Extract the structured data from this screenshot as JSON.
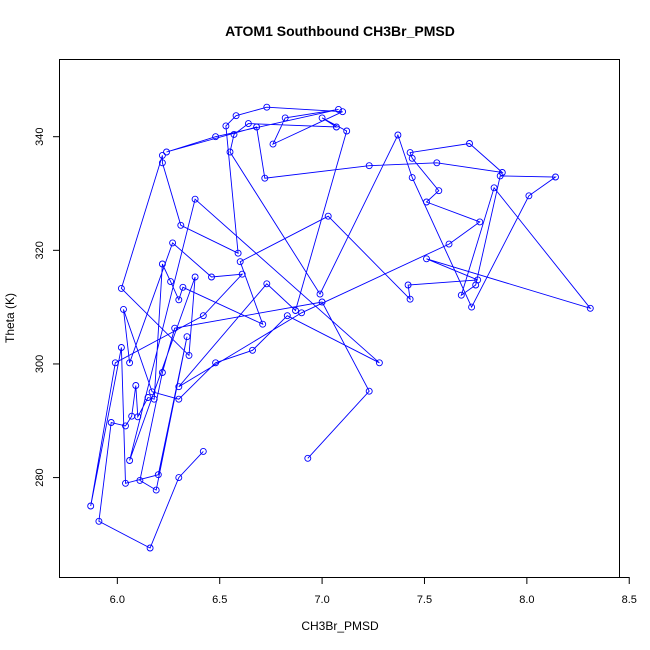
{
  "chart_data": {
    "type": "line",
    "title": "ATOM1 Southbound CH3Br_PMSD",
    "xlabel": "CH3Br_PMSD",
    "ylabel": "Theta (K)",
    "xlim": [
      5.72,
      8.45
    ],
    "ylim": [
      262.5,
      353.5
    ],
    "x_ticks": [
      6.0,
      6.5,
      7.0,
      7.5,
      8.0,
      8.5
    ],
    "x_tick_labels": [
      "6.0",
      "6.5",
      "7.0",
      "7.5",
      "8.0",
      "8.5"
    ],
    "y_ticks": [
      280,
      300,
      320,
      340
    ],
    "y_tick_labels": [
      "280",
      "300",
      "320",
      "340"
    ],
    "grid": false,
    "legend": "none",
    "line_color": "#0000ff",
    "marker": "open-circle",
    "series": [
      {
        "x": [
          6.93,
          7.23,
          7.0,
          6.28,
          6.22,
          6.11,
          6.19,
          6.34,
          6.2,
          6.04,
          6.02,
          5.87,
          5.99,
          6.42,
          6.61,
          6.46,
          6.27,
          6.06,
          6.03,
          6.17,
          6.3,
          6.48,
          6.66,
          6.83,
          7.28,
          6.38,
          6.06,
          6.38,
          6.35,
          6.02,
          6.22,
          6.22,
          6.31,
          6.59,
          6.53,
          6.58,
          6.73,
          7.1,
          6.76,
          6.82,
          7.08,
          6.48,
          6.24,
          6.68,
          6.72,
          7.23,
          7.56,
          7.88,
          7.72,
          7.43,
          7.44,
          7.57,
          7.51,
          7.77,
          7.62,
          6.9,
          6.3,
          6.73,
          6.87,
          7.12,
          7.0,
          7.07,
          6.64,
          6.57,
          6.55,
          6.99,
          7.37,
          7.44,
          7.73,
          8.01,
          8.14,
          7.87,
          7.75,
          7.68,
          7.84,
          8.31,
          7.51,
          7.76,
          7.42,
          7.43,
          7.03,
          6.6,
          6.71,
          6.32,
          6.3,
          6.26,
          6.22,
          6.18,
          6.15,
          6.1,
          6.09,
          6.07,
          6.04,
          5.97,
          5.91,
          6.16,
          6.3,
          6.42
        ],
        "y": [
          283.4,
          295.2,
          310.9,
          306.3,
          298.5,
          279.5,
          277.8,
          304.8,
          280.5,
          279.0,
          302.9,
          275.0,
          300.2,
          308.5,
          315.8,
          315.3,
          321.3,
          300.2,
          309.6,
          295.1,
          293.8,
          300.2,
          302.4,
          308.5,
          300.2,
          329.0,
          283.0,
          315.3,
          301.5,
          313.3,
          336.7,
          335.4,
          324.4,
          319.5,
          341.9,
          343.7,
          345.2,
          344.4,
          338.7,
          343.3,
          344.8,
          340.0,
          337.3,
          341.7,
          332.7,
          334.9,
          335.4,
          333.7,
          338.8,
          337.2,
          336.2,
          330.5,
          328.5,
          325.0,
          321.1,
          309.0,
          296.0,
          314.1,
          309.4,
          341.0,
          343.3,
          341.7,
          342.3,
          340.4,
          337.3,
          312.3,
          340.3,
          332.8,
          310.0,
          329.6,
          332.9,
          333.1,
          313.9,
          312.1,
          331.0,
          309.8,
          318.5,
          314.8,
          313.9,
          311.4,
          326.0,
          318.0,
          307.0,
          313.5,
          311.3,
          314.5,
          317.6,
          293.8,
          294.1,
          290.7,
          296.2,
          290.8,
          289.1,
          289.7,
          272.3,
          267.6,
          280.0,
          284.6
        ]
      }
    ]
  }
}
